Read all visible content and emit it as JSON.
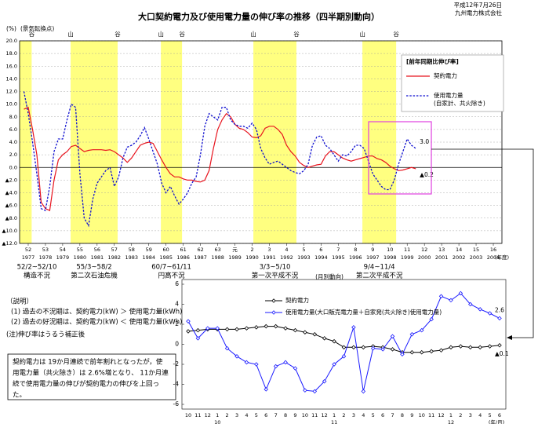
{
  "header": {
    "date": "平成12年7月26日",
    "company": "九州電力株式会社"
  },
  "notes": {
    "heading": "（説明）",
    "items": [
      "(1)  過去の不況期は、契約電力(kW) ＞ 使用電力量(kWh)",
      "(2)  過去の好況期は、契約電力(kW) ＜ 使用電力量(kWh)"
    ],
    "footnote": "(注)伸び率はうるう補正後",
    "summary": [
      "契約電力は 19か月連続で前年割れとなったが，使",
      "用電力量（共火除き）は 2.6%増となり、 11か月連",
      "続で使用電力量の伸びが契約電力の伸びを上回っ",
      "た。"
    ]
  },
  "chart_data": [
    {
      "type": "line",
      "title": "大口契約電力及び使用電力量の伸び率の推移（四半期別動向）",
      "y_unit": "(%)",
      "annotation": "(景気転換点)",
      "x_label": "(年度)",
      "legend_title": "[前年同期比伸び率]",
      "grid": true,
      "band_color": "#ffff80",
      "xlim": [
        1976.5,
        2004.5
      ],
      "xticks": [
        1977,
        1978,
        1979,
        1980,
        1981,
        1982,
        1983,
        1984,
        1985,
        1986,
        1987,
        1988,
        1989,
        1990,
        1991,
        1992,
        1993,
        1994,
        1995,
        1996,
        1997,
        1998,
        1999,
        2000,
        2001,
        2002,
        2003,
        2004
      ],
      "era_labels": [
        "52",
        "53",
        "54",
        "55",
        "56",
        "57",
        "58",
        "59",
        "60",
        "61",
        "62",
        "63",
        "元",
        "2",
        "3",
        "4",
        "5",
        "6",
        "7",
        "8",
        "9",
        "10",
        "11",
        "12",
        "13",
        "14",
        "15",
        "16"
      ],
      "ylim": [
        -12,
        20
      ],
      "yticks": [
        {
          "value": 20,
          "label": "20.0"
        },
        {
          "value": 18,
          "label": "18.0"
        },
        {
          "value": 16,
          "label": "16.0"
        },
        {
          "value": 14,
          "label": "14.0"
        },
        {
          "value": 12,
          "label": "12.0"
        },
        {
          "value": 10,
          "label": "10.0"
        },
        {
          "value": 8,
          "label": "8.0"
        },
        {
          "value": 6,
          "label": "6.0"
        },
        {
          "value": 4,
          "label": "4.0"
        },
        {
          "value": 2,
          "label": "2.0"
        },
        {
          "value": 0,
          "label": "0.0"
        },
        {
          "value": -2,
          "label": "▲2.0"
        },
        {
          "value": -4,
          "label": "▲4.0"
        },
        {
          "value": -6,
          "label": "▲6.0"
        },
        {
          "value": -8,
          "label": "▲8.0"
        },
        {
          "value": -10,
          "label": "▲10.0"
        },
        {
          "value": -12,
          "label": "▲12.0"
        }
      ],
      "recessions": [
        {
          "start": 1976.5,
          "end": 1977.2,
          "trough": "谷",
          "period": "52/2~52/10",
          "name": "構造不況"
        },
        {
          "start": 1979.46,
          "end": 1982.19,
          "peak": "山",
          "trough": "谷",
          "period": "55/3~58/2",
          "name": "第二次石油危機"
        },
        {
          "start": 1984.7,
          "end": 1985.93,
          "peak": "山",
          "trough": "谷",
          "period": "60/7~61/11",
          "name": "円高不況"
        },
        {
          "start": 1990.07,
          "end": 1992.57,
          "peak": "山",
          "trough": "谷",
          "period": "3/3~5/10",
          "name": "第一次平成不況"
        },
        {
          "start": 1996.4,
          "end": 1998.36,
          "peak": "山",
          "trough": "谷",
          "period": "9/4~11/4",
          "name": "第二次平成不況"
        }
      ],
      "x": [
        1976.75,
        1977,
        1977.25,
        1977.5,
        1977.75,
        1978,
        1978.25,
        1978.5,
        1978.75,
        1979,
        1979.25,
        1979.5,
        1979.75,
        1980,
        1980.25,
        1980.5,
        1980.75,
        1981,
        1981.25,
        1981.5,
        1981.75,
        1982,
        1982.25,
        1982.5,
        1982.75,
        1983,
        1983.25,
        1983.5,
        1983.75,
        1984,
        1984.25,
        1984.5,
        1984.75,
        1985,
        1985.25,
        1985.5,
        1985.75,
        1986,
        1986.25,
        1986.5,
        1986.75,
        1987,
        1987.25,
        1987.5,
        1987.75,
        1988,
        1988.25,
        1988.5,
        1988.75,
        1989,
        1989.25,
        1989.5,
        1989.75,
        1990,
        1990.25,
        1990.5,
        1990.75,
        1991,
        1991.25,
        1991.5,
        1991.75,
        1992,
        1992.25,
        1992.5,
        1992.75,
        1993,
        1993.25,
        1993.5,
        1993.75,
        1994,
        1994.25,
        1994.5,
        1994.75,
        1995,
        1995.25,
        1995.5,
        1995.75,
        1996,
        1996.25,
        1996.5,
        1996.75,
        1997,
        1997.25,
        1997.5,
        1997.75,
        1998,
        1998.25,
        1998.5,
        1998.75,
        1999,
        1999.25,
        1999.5
      ],
      "series": [
        {
          "name": "契約電力",
          "color": "#e8141e",
          "dashed": false,
          "values": [
            9.2,
            9.5,
            6,
            2,
            -5.5,
            -6.5,
            -6.8,
            -2,
            1.2,
            2,
            2.5,
            3.3,
            3.5,
            3.0,
            2.5,
            2.7,
            2.8,
            2.8,
            2.8,
            2.7,
            2.8,
            2.5,
            2.0,
            1.5,
            0.8,
            1.5,
            2.5,
            3.5,
            3.8,
            4.0,
            3.8,
            2.5,
            1.2,
            0.0,
            -1.0,
            -1.5,
            -1.5,
            -1.8,
            -2.0,
            -2.0,
            -2.2,
            -2.3,
            -2.0,
            -0.5,
            3.0,
            6.0,
            7.5,
            8.5,
            8.0,
            6.8,
            6.2,
            6.0,
            5.5,
            4.8,
            4.7,
            5.0,
            6.2,
            6.5,
            6.5,
            6.0,
            5.2,
            3.5,
            2.5,
            1.8,
            0.8,
            0.3,
            0.0,
            0.2,
            0.4,
            0.5,
            1.8,
            2.5,
            2.5,
            2.0,
            1.5,
            1.2,
            1.0,
            1.2,
            1.4,
            1.6,
            1.8,
            1.8,
            1.4,
            1.2,
            0.8,
            0.2,
            -0.2,
            -0.5,
            -0.4,
            -0.2,
            0.0,
            -0.2
          ],
          "value_labels": {
            "91": "▲0.2"
          }
        },
        {
          "name": "使用電力量",
          "note": "(自家計、共火除き)",
          "color": "#1010d0",
          "dashed": true,
          "values": [
            12,
            8.5,
            4,
            -1,
            -6.5,
            -6.8,
            -3,
            2.5,
            4.5,
            4.5,
            7.5,
            10,
            9.5,
            -1,
            -8,
            -9.2,
            -5,
            -2.5,
            -1.5,
            -0.5,
            0.0,
            -3,
            -1.5,
            1.5,
            3.2,
            3.5,
            4,
            5,
            6.3,
            4.5,
            2.5,
            0.5,
            -2.5,
            -4,
            -3,
            -4.5,
            -5.8,
            -5,
            -4,
            -2.5,
            -1.5,
            2,
            6.5,
            8.5,
            8,
            7.5,
            9.5,
            9.5,
            7.5,
            6.8,
            6.5,
            6.5,
            6.2,
            7,
            6,
            3,
            1.5,
            0.5,
            0.8,
            1.0,
            0.5,
            0,
            -0.5,
            -0.8,
            -1.0,
            -0.5,
            0.5,
            3.5,
            4.8,
            5,
            3.5,
            3,
            2,
            1,
            2,
            1.8,
            2.5,
            3.5,
            3.5,
            3,
            1,
            -1,
            -2,
            -3,
            -3.5,
            -3.5,
            -2,
            0.5,
            2.5,
            4.5,
            3.5,
            3.0
          ],
          "value_labels": {
            "91": "3.0"
          }
        }
      ]
    },
    {
      "type": "line",
      "title": "(月別動向)",
      "x_label": "(年/月)",
      "grid": false,
      "categories": [
        "10",
        "11",
        "12",
        "1",
        "2",
        "3",
        "4",
        "5",
        "6",
        "7",
        "8",
        "9",
        "10",
        "11",
        "12",
        "1",
        "2",
        "3",
        "4",
        "5",
        "6",
        "7",
        "8",
        "9",
        "10",
        "11",
        "12",
        "1",
        "2",
        "3",
        "4",
        "5",
        "6"
      ],
      "year_marks": [
        {
          "index": 3,
          "label": "10"
        },
        {
          "index": 15,
          "label": "11"
        },
        {
          "index": 27,
          "label": "12"
        }
      ],
      "ylim": [
        -6,
        6
      ],
      "yticks": [
        6,
        4,
        2,
        0,
        -2,
        -4,
        -6
      ],
      "series": [
        {
          "name": "契約電力",
          "color": "#000000",
          "marker": "diamond",
          "values": [
            1.3,
            1.4,
            1.5,
            1.5,
            1.5,
            1.5,
            1.6,
            1.7,
            1.8,
            1.8,
            1.6,
            1.4,
            1.2,
            1.0,
            0.6,
            0.3,
            -0.3,
            -0.3,
            -0.3,
            -0.2,
            -0.3,
            -0.5,
            -0.8,
            -0.8,
            -0.8,
            -0.7,
            -0.6,
            -0.3,
            -0.2,
            -0.3,
            -0.3,
            -0.2,
            -0.1
          ],
          "value_labels": {
            "32": "▲0.1"
          }
        },
        {
          "name": "使用電力量(大口販売電力量＋自家発(共火除き)使用電力量)",
          "color": "#1a1aff",
          "marker": "diamond",
          "values": [
            2.3,
            0.6,
            1.6,
            1.6,
            -0.4,
            -1.2,
            -1.8,
            -2.0,
            -4.5,
            -2.2,
            -1.8,
            -2.4,
            -4.6,
            -4.7,
            -3.7,
            -2.0,
            -1.2,
            1.7,
            -4.7,
            -0.4,
            -0.5,
            0.8,
            -1.0,
            1.0,
            1.4,
            2.5,
            4.8,
            4.4,
            5.1,
            4.0,
            3.5,
            3.1,
            2.6
          ],
          "value_labels": {
            "32": "2.6"
          }
        }
      ]
    }
  ]
}
